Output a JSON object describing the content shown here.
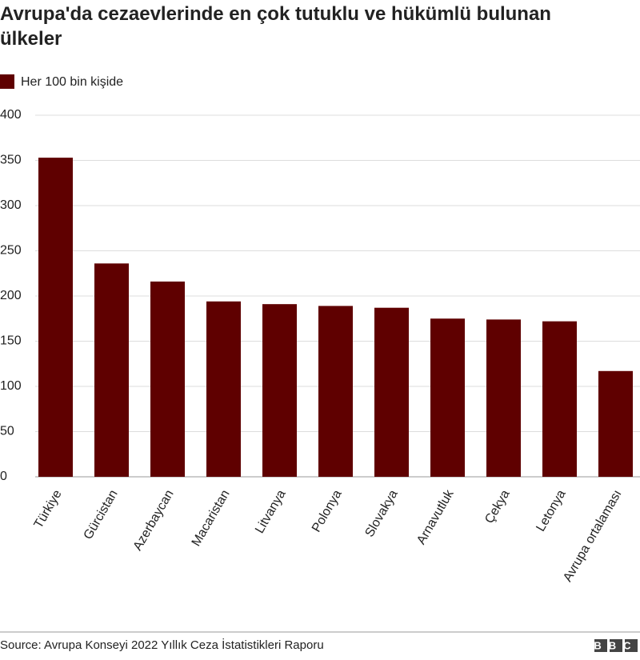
{
  "chart_data": {
    "type": "bar",
    "title": "Avrupa'da cezaevlerinde en çok tutuklu ve hükümlü bulunan ülkeler",
    "categories": [
      "Türkiye",
      "Gürcistan",
      "Azerbaycan",
      "Macaristan",
      "Litvanya",
      "Polonya",
      "Slovakya",
      "Arnavutluk",
      "Çekya",
      "Letonya",
      "Avrupa ortalaması"
    ],
    "series": [
      {
        "name": "Her 100 bin kişide",
        "color": "#5f0000",
        "values": [
          353,
          236,
          216,
          194,
          191,
          189,
          187,
          175,
          174,
          172,
          117
        ]
      }
    ],
    "ylim": [
      0,
      400
    ],
    "yticks": [
      0,
      50,
      100,
      150,
      200,
      250,
      300,
      350,
      400
    ],
    "grid": true
  },
  "footer": {
    "source": "Source: Avrupa Konseyi 2022 Yıllık Ceza İstatistikleri Raporu",
    "logo": "BBC"
  }
}
